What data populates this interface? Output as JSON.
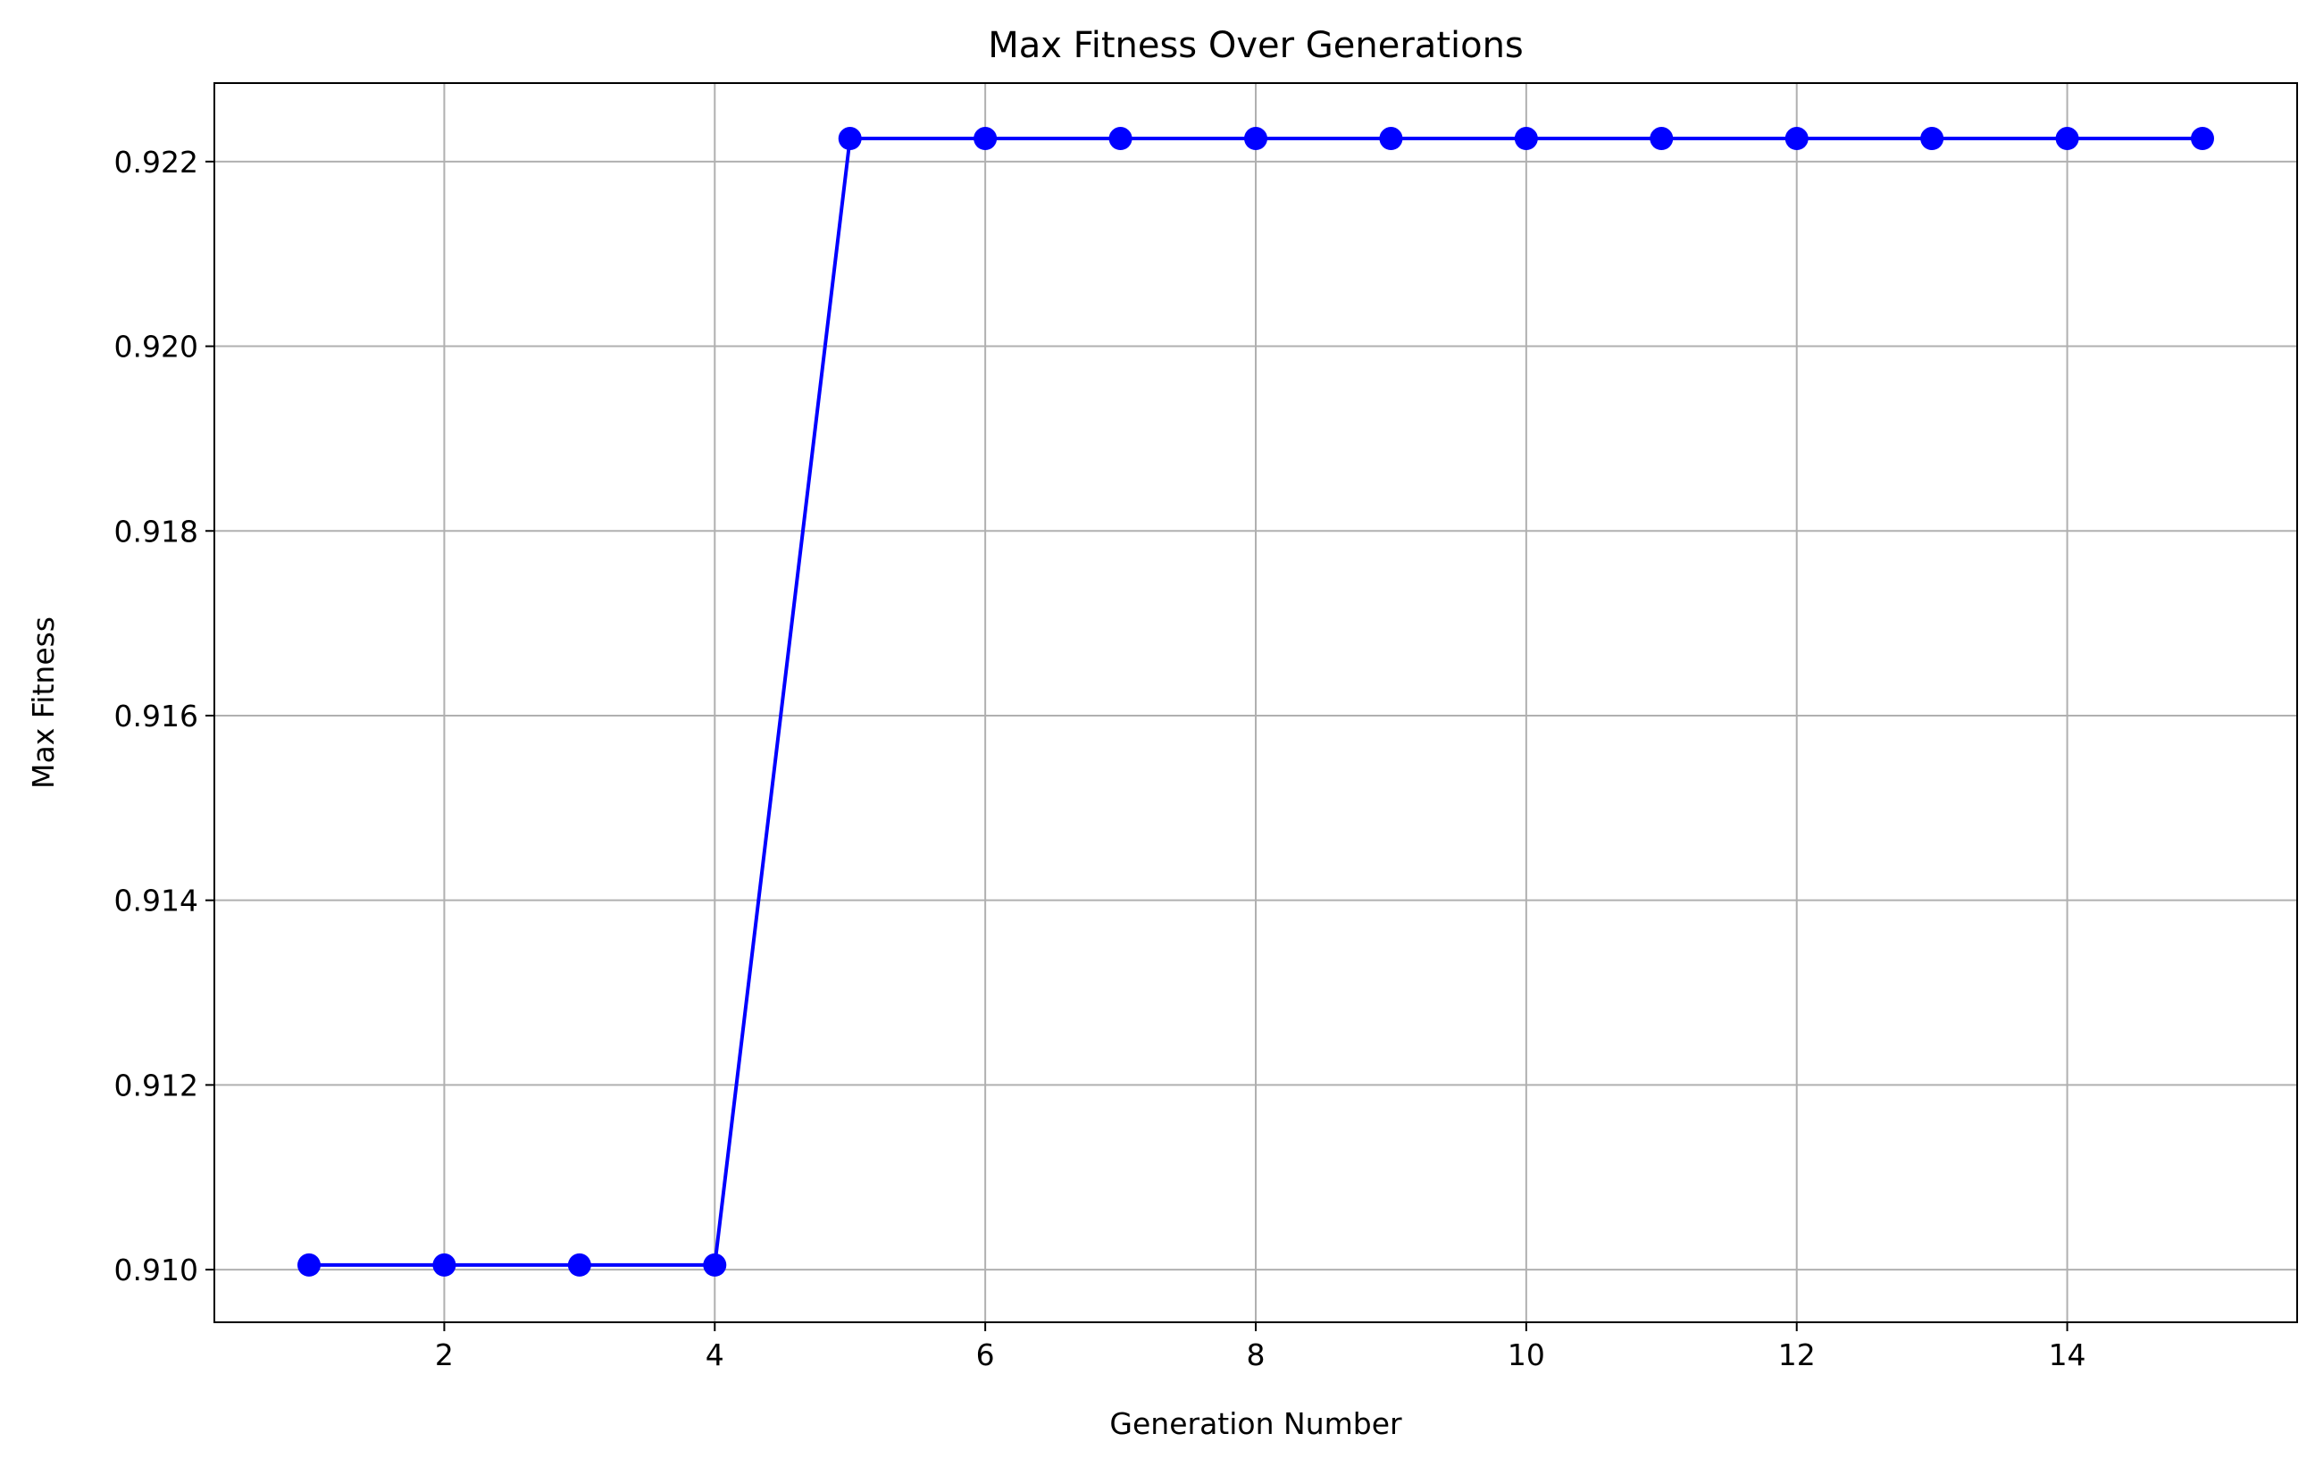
{
  "chart_data": {
    "type": "line",
    "title": "Max Fitness Over Generations",
    "xlabel": "Generation Number",
    "ylabel": "Max Fitness",
    "xlim": [
      0.3,
      15.7
    ],
    "ylim": [
      0.90943,
      0.92285
    ],
    "x_ticks": [
      2,
      4,
      6,
      8,
      10,
      12,
      14
    ],
    "x_tick_labels": [
      "2",
      "4",
      "6",
      "8",
      "10",
      "12",
      "14"
    ],
    "y_ticks": [
      0.91,
      0.912,
      0.914,
      0.916,
      0.918,
      0.92,
      0.922
    ],
    "y_tick_labels": [
      "0.910",
      "0.912",
      "0.914",
      "0.916",
      "0.918",
      "0.920",
      "0.922"
    ],
    "grid": true,
    "series": [
      {
        "color": "#0000ff",
        "marker": "circle",
        "x": [
          1,
          2,
          3,
          4,
          5,
          6,
          7,
          8,
          9,
          10,
          11,
          12,
          13,
          14,
          15
        ],
        "values": [
          0.91005,
          0.91005,
          0.91005,
          0.91005,
          0.92225,
          0.92225,
          0.92225,
          0.92225,
          0.92225,
          0.92225,
          0.92225,
          0.92225,
          0.92225,
          0.92225,
          0.92225
        ]
      }
    ]
  }
}
